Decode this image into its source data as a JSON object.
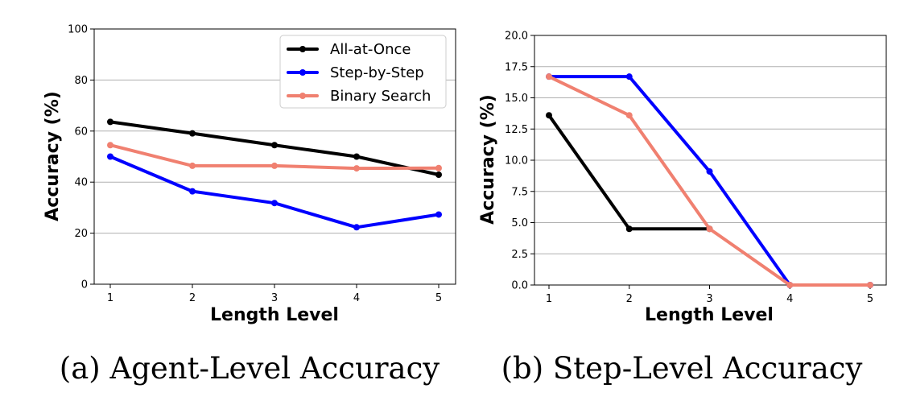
{
  "chart_data": [
    {
      "type": "line",
      "caption": "(a) Agent-Level Accuracy",
      "xlabel": "Length Level",
      "ylabel": "Accuracy (%)",
      "x": [
        1,
        2,
        3,
        4,
        5
      ],
      "xticks": [
        "1",
        "2",
        "3",
        "4",
        "5"
      ],
      "ylim": [
        0,
        100
      ],
      "yticks": [
        "0",
        "20",
        "40",
        "60",
        "80",
        "100"
      ],
      "grid": "horizontal",
      "legend": "top-right",
      "series": [
        {
          "name": "All-at-Once",
          "color": "#000000",
          "values": [
            63.6,
            59.1,
            54.5,
            50.0,
            42.9
          ]
        },
        {
          "name": "Step-by-Step",
          "color": "#0000ff",
          "values": [
            50.0,
            36.4,
            31.8,
            22.3,
            27.3
          ]
        },
        {
          "name": "Binary Search",
          "color": "#f08070",
          "values": [
            54.5,
            46.4,
            46.4,
            45.4,
            45.5
          ]
        }
      ]
    },
    {
      "type": "line",
      "caption": "(b) Step-Level Accuracy",
      "xlabel": "Length Level",
      "ylabel": "Accuracy (%)",
      "x": [
        1,
        2,
        3,
        4,
        5
      ],
      "xticks": [
        "1",
        "2",
        "3",
        "4",
        "5"
      ],
      "ylim": [
        0,
        20
      ],
      "yticks": [
        "0.0",
        "2.5",
        "5.0",
        "7.5",
        "10.0",
        "12.5",
        "15.0",
        "17.5",
        "20.0"
      ],
      "grid": "horizontal",
      "legend": "none",
      "series": [
        {
          "name": "All-at-Once",
          "color": "#000000",
          "values": [
            13.6,
            4.5,
            4.5,
            null,
            null
          ]
        },
        {
          "name": "Step-by-Step",
          "color": "#0000ff",
          "values": [
            16.7,
            16.7,
            9.1,
            0.0,
            0.0
          ]
        },
        {
          "name": "Binary Search",
          "color": "#f08070",
          "values": [
            16.7,
            13.6,
            4.5,
            0.0,
            0.0
          ]
        }
      ]
    }
  ]
}
